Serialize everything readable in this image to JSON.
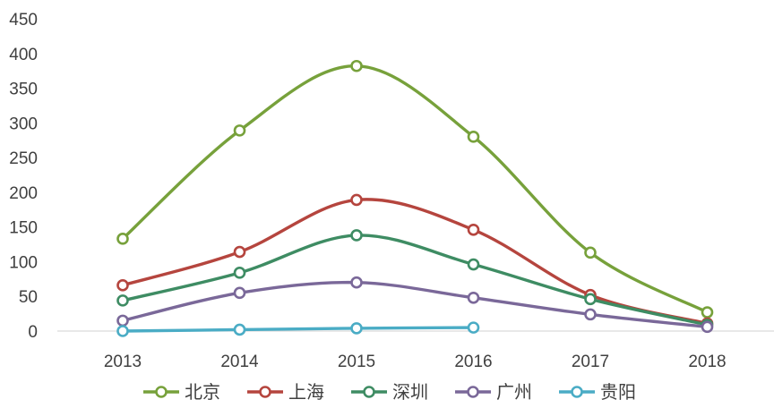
{
  "chart_data": {
    "type": "line",
    "smooth": true,
    "categories": [
      "2013",
      "2014",
      "2015",
      "2016",
      "2017",
      "2018"
    ],
    "series": [
      {
        "name": "北京",
        "color": "#77a13b",
        "values": [
          133,
          289,
          382,
          280,
          113,
          27
        ]
      },
      {
        "name": "上海",
        "color": "#b5453e",
        "values": [
          66,
          114,
          189,
          146,
          52,
          11
        ]
      },
      {
        "name": "深圳",
        "color": "#3e8c63",
        "values": [
          44,
          84,
          138,
          96,
          46,
          9
        ]
      },
      {
        "name": "广州",
        "color": "#7a6899",
        "values": [
          15,
          55,
          70,
          48,
          24,
          6
        ]
      },
      {
        "name": "贵阳",
        "color": "#4aacc5",
        "values": [
          0,
          2,
          4,
          5,
          null,
          null
        ]
      }
    ],
    "ylim": [
      0,
      450
    ],
    "yticks": [
      "0",
      "50",
      "100",
      "150",
      "200",
      "250",
      "300",
      "350",
      "400",
      "450"
    ],
    "grid": false,
    "legend": "bottom",
    "marker": "hollow-circle"
  }
}
